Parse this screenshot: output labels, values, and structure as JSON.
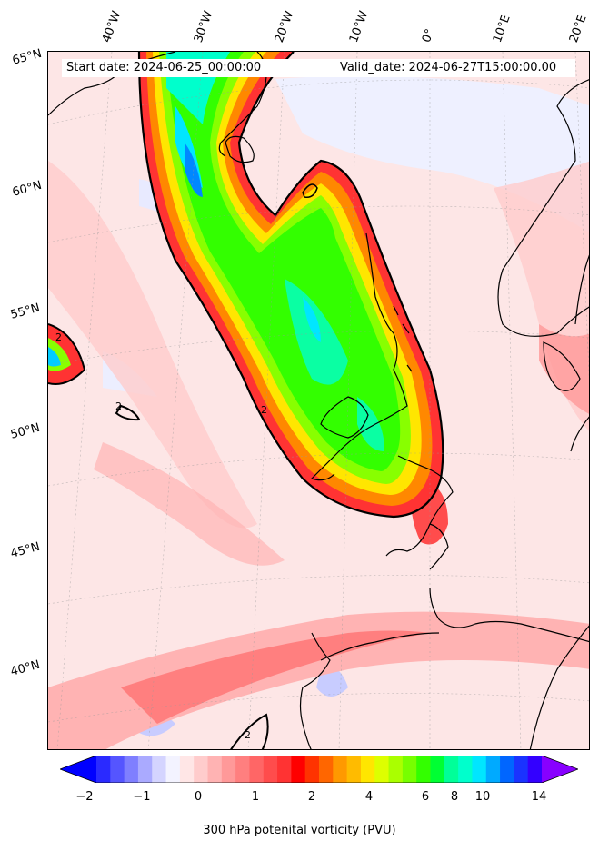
{
  "header": {
    "start_date": "Start date: 2024-06-25_00:00:00",
    "valid_date": "Valid_date: 2024-06-27T15:00:00.00"
  },
  "axes": {
    "lon_labels": [
      "40°W",
      "30°W",
      "20°W",
      "10°W",
      "0°",
      "10°E",
      "20°E"
    ],
    "lat_labels": [
      "65°N",
      "60°N",
      "55°N",
      "50°N",
      "45°N",
      "40°N"
    ]
  },
  "contour_label": "2",
  "colorbar": {
    "label": "300 hPa potenital vorticity (PVU)",
    "ticks": [
      "−2",
      "−1",
      "0",
      "1",
      "2",
      "4",
      "6",
      "8",
      "10",
      "14"
    ],
    "colors": [
      "#0000ff",
      "#2a2aff",
      "#5555ff",
      "#7f7fff",
      "#aaaaff",
      "#d4d4ff",
      "#f3f3ff",
      "#ffe6e6",
      "#ffcccc",
      "#ffb3b3",
      "#ff9999",
      "#ff7f7f",
      "#ff6666",
      "#ff4c4c",
      "#ff3333",
      "#ff0000",
      "#ff3300",
      "#ff6600",
      "#ff9900",
      "#ffbb00",
      "#ffe600",
      "#ddff00",
      "#aaff00",
      "#77ff00",
      "#33ff00",
      "#00ff33",
      "#00ff99",
      "#00ffcc",
      "#00e6ff",
      "#00aaff",
      "#0066ff",
      "#1a33ff",
      "#3300ff",
      "#8800ff"
    ]
  }
}
